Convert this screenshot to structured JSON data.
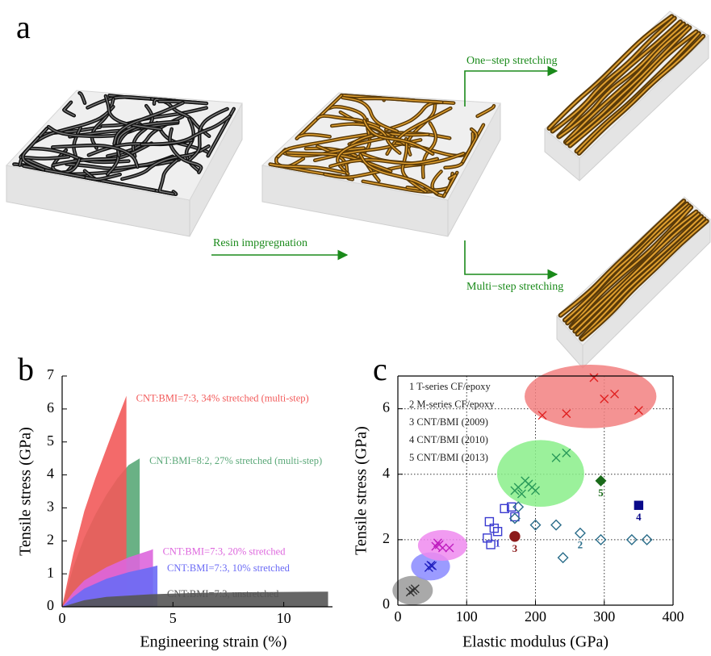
{
  "panel_labels": [
    "a",
    "b",
    "c"
  ],
  "diagram": {
    "steps": [
      "Resin impgregnation",
      "One−step stretching",
      "Multi−step stretching"
    ]
  },
  "chart_data": [
    {
      "type": "area",
      "xlabel": "Engineering strain (%)",
      "ylabel": "Tensile stress (GPa)",
      "xlim": [
        0,
        12.2
      ],
      "ylim": [
        0,
        7
      ],
      "xticks": [
        0,
        5,
        10
      ],
      "yticks": [
        0,
        1,
        2,
        3,
        4,
        5,
        6,
        7
      ],
      "series": [
        {
          "name": "CNT:BMI=8:2, 27% stretched (multi-step)",
          "color": "#5aa878",
          "x": [
            0,
            0.5,
            1,
            1.5,
            2,
            2.5,
            3,
            3.5
          ],
          "values": [
            0,
            1.2,
            2.1,
            2.8,
            3.4,
            3.9,
            4.3,
            4.5
          ]
        },
        {
          "name": "CNT:BMI=7:3, 34% stretched (multi-step)",
          "color": "#f25a5a",
          "x": [
            0,
            0.5,
            1,
            1.5,
            2,
            2.5,
            2.9
          ],
          "values": [
            0,
            1.6,
            2.9,
            3.9,
            4.8,
            5.7,
            6.4
          ]
        },
        {
          "name": "CNT:BMI=7:3, 20% stretched",
          "color": "#dd66dd",
          "x": [
            0,
            0.5,
            1,
            2,
            3,
            4,
            4.1
          ],
          "values": [
            0,
            0.45,
            0.8,
            1.2,
            1.5,
            1.72,
            1.75
          ]
        },
        {
          "name": "CNT:BMI=7:3, 10% stretched",
          "color": "#6a6af5",
          "x": [
            0,
            0.5,
            1,
            2,
            3,
            4,
            4.3
          ],
          "values": [
            0,
            0.3,
            0.55,
            0.85,
            1.05,
            1.2,
            1.25
          ]
        },
        {
          "name": "CNT:BMI=7:3, unstretched",
          "color": "#555555",
          "x": [
            0,
            1,
            2,
            4,
            6,
            8,
            10,
            12
          ],
          "values": [
            0,
            0.2,
            0.3,
            0.38,
            0.42,
            0.44,
            0.45,
            0.46
          ]
        }
      ]
    },
    {
      "type": "scatter",
      "xlabel": "Elastic modulus (GPa)",
      "ylabel": "Tensile stress (GPa)",
      "xlim": [
        0,
        400
      ],
      "ylim": [
        0,
        7
      ],
      "xticks": [
        0,
        100,
        200,
        300,
        400
      ],
      "yticks": [
        0,
        2,
        4,
        6
      ],
      "grid": true,
      "legend": "upper left",
      "series": [
        {
          "name": "1 T-series CF/epoxy",
          "label": "1",
          "color": "#3a3ad0",
          "marker": "square",
          "filled": false,
          "x": [
            130,
            133,
            135,
            140,
            145,
            155,
            165,
            170
          ],
          "values": [
            2.05,
            2.55,
            1.85,
            2.35,
            2.25,
            2.95,
            3.0,
            2.7
          ]
        },
        {
          "name": "2 M-series CF/epoxy",
          "label": "2",
          "color": "#2a6d8a",
          "marker": "diamond",
          "filled": false,
          "x": [
            175,
            200,
            230,
            265,
            240,
            295,
            340,
            362,
            170
          ],
          "values": [
            3.0,
            2.45,
            2.45,
            2.2,
            1.45,
            2.0,
            2.0,
            2.0,
            2.65
          ]
        },
        {
          "name": "3 CNT/BMI (2009)",
          "label": "3",
          "color": "#8b1a1a",
          "marker": "circle",
          "filled": true,
          "x": [
            170
          ],
          "values": [
            2.1
          ]
        },
        {
          "name": "4 CNT/BMI (2010)",
          "label": "4",
          "color": "#0a0a8a",
          "marker": "square",
          "filled": true,
          "x": [
            350
          ],
          "values": [
            3.05
          ]
        },
        {
          "name": "5 CNT/BMI (2013)",
          "label": "5",
          "color": "#1a6a1a",
          "marker": "diamond",
          "filled": true,
          "x": [
            295
          ],
          "values": [
            3.8
          ]
        },
        {
          "color": "#333333",
          "marker": "cross",
          "halo": "#9a9a9a",
          "x": [
            18,
            25,
            22
          ],
          "values": [
            0.4,
            0.5,
            0.45
          ]
        },
        {
          "color": "#2020c0",
          "marker": "cross",
          "halo": "#8a8aff",
          "x": [
            45,
            50,
            48
          ],
          "values": [
            1.15,
            1.2,
            1.22
          ]
        },
        {
          "color": "#c020c0",
          "marker": "cross",
          "halo": "#ee8aee",
          "x": [
            55,
            60,
            65,
            75,
            58
          ],
          "values": [
            1.8,
            1.85,
            1.75,
            1.75,
            1.9
          ]
        },
        {
          "color": "#2a9a5a",
          "marker": "cross",
          "halo": "#8aee8a",
          "x": [
            170,
            175,
            180,
            185,
            190,
            195,
            200,
            230,
            245
          ],
          "values": [
            3.5,
            3.6,
            3.4,
            3.8,
            3.7,
            3.6,
            3.5,
            4.5,
            4.65
          ]
        },
        {
          "color": "#e02020",
          "marker": "cross",
          "halo": "#f28080",
          "x": [
            210,
            245,
            285,
            300,
            315,
            350
          ],
          "values": [
            5.8,
            5.85,
            6.95,
            6.3,
            6.45,
            5.95
          ]
        }
      ]
    }
  ]
}
